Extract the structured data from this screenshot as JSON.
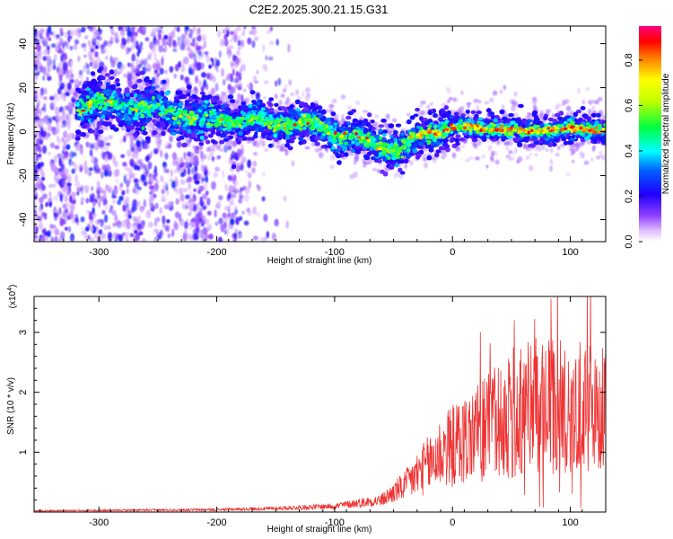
{
  "title": "C2E2.2025.300.21.15.G31",
  "chart_data": [
    {
      "type": "heatmap",
      "xlabel": "Height of straight line (km)",
      "ylabel": "Frequency (Hz)",
      "xlim": [
        -355,
        130
      ],
      "ylim": [
        -50,
        48
      ],
      "xticks": [
        -300,
        -200,
        -100,
        0,
        100
      ],
      "yticks": [
        -40,
        -20,
        0,
        20,
        40
      ],
      "colorbar": {
        "label": "Normalized spectral amplitude",
        "range": [
          0.0,
          0.95
        ],
        "ticks": [
          0.0,
          0.2,
          0.4,
          0.6,
          0.8
        ],
        "colors": [
          "#ffffff",
          "#c080ff",
          "#7000ff",
          "#0000ff",
          "#00ffff",
          "#00ff00",
          "#ffff00",
          "#ff8000",
          "#ff0000",
          "#ff0080"
        ]
      },
      "ridge": {
        "x": [
          -310,
          -290,
          -270,
          -250,
          -230,
          -210,
          -190,
          -170,
          -150,
          -130,
          -110,
          -90,
          -70,
          -55,
          -45,
          -35,
          -25,
          -10,
          0,
          20,
          40,
          60,
          80,
          100,
          125
        ],
        "y": [
          12,
          13,
          11,
          10,
          8,
          5,
          6,
          5,
          4,
          4,
          2,
          -2,
          -5,
          -8,
          -9,
          -4,
          -1,
          0,
          2,
          2,
          1,
          0,
          1,
          1,
          1
        ]
      }
    },
    {
      "type": "line",
      "xlabel": "Height of straight line (km)",
      "ylabel": "SNR (10 * v/v)",
      "y_multiplier": "(x10^4)",
      "xlim": [
        -355,
        130
      ],
      "ylim": [
        0,
        3.6
      ],
      "xticks": [
        -300,
        -200,
        -100,
        0,
        100
      ],
      "yticks": [
        1,
        2,
        3
      ],
      "series": [
        {
          "color": "#ee3333",
          "envelope_x": [
            -355,
            -200,
            -150,
            -100,
            -60,
            -40,
            -20,
            -10,
            0,
            20,
            40,
            60,
            80,
            100,
            130
          ],
          "envelope_mean": [
            0.02,
            0.04,
            0.06,
            0.1,
            0.2,
            0.45,
            0.8,
            1.0,
            1.1,
            1.3,
            1.5,
            1.75,
            1.7,
            1.75,
            1.75
          ],
          "envelope_amp": [
            0.01,
            0.02,
            0.03,
            0.05,
            0.1,
            0.25,
            0.5,
            0.6,
            0.7,
            0.8,
            1.0,
            1.2,
            1.2,
            1.1,
            1.1
          ]
        }
      ]
    }
  ]
}
